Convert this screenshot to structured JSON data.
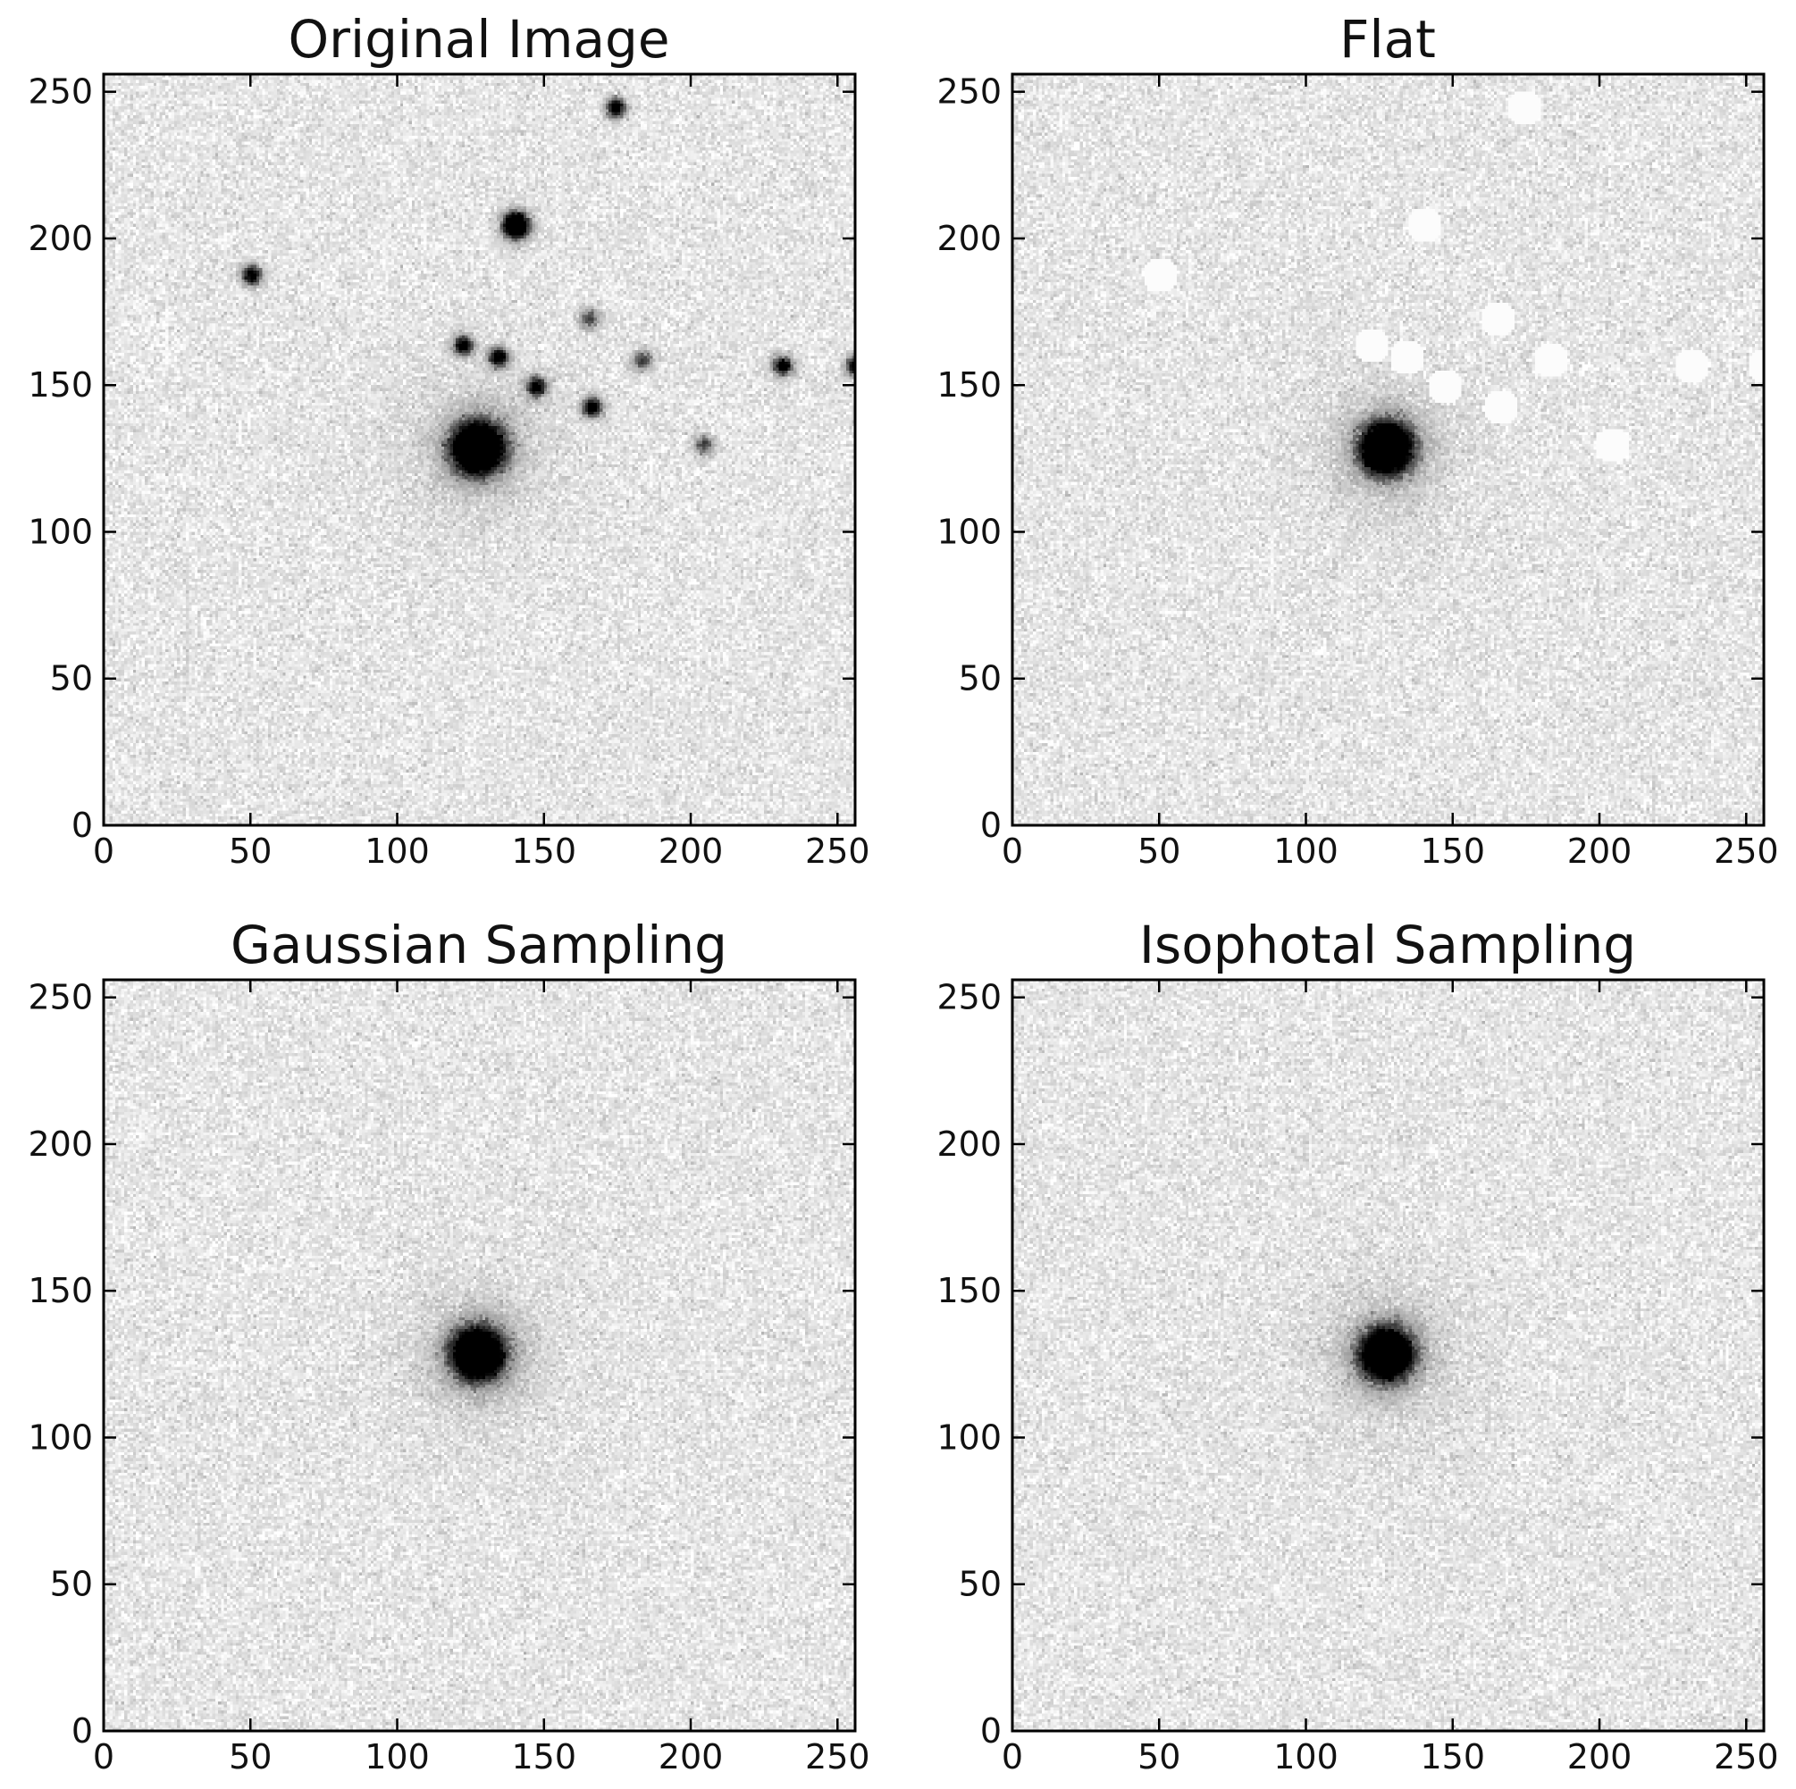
{
  "figure": {
    "panels": [
      {
        "key": "original",
        "title": "Original Image",
        "show_companions": true
      },
      {
        "key": "flat",
        "title": "Flat",
        "show_companions": false,
        "masked": true
      },
      {
        "key": "gaussian",
        "title": "Gaussian Sampling",
        "show_companions": false
      },
      {
        "key": "isophotal",
        "title": "Isophotal Sampling",
        "show_companions": false
      }
    ],
    "axes": {
      "x_range": [
        0,
        256
      ],
      "y_range": [
        0,
        256
      ],
      "x_ticks": [
        0,
        50,
        100,
        150,
        200,
        250
      ],
      "y_ticks": [
        0,
        50,
        100,
        150,
        200,
        250
      ],
      "colormap": "gray_r"
    },
    "main_source": {
      "x": 127,
      "y": 128
    },
    "companion_sources": [
      {
        "x": 140,
        "y": 204
      },
      {
        "x": 174,
        "y": 244
      },
      {
        "x": 50,
        "y": 187
      },
      {
        "x": 165,
        "y": 172
      },
      {
        "x": 122,
        "y": 163
      },
      {
        "x": 134,
        "y": 159
      },
      {
        "x": 183,
        "y": 158
      },
      {
        "x": 147,
        "y": 149
      },
      {
        "x": 166,
        "y": 142
      },
      {
        "x": 204,
        "y": 129
      },
      {
        "x": 231,
        "y": 156
      },
      {
        "x": 256,
        "y": 156
      }
    ]
  }
}
